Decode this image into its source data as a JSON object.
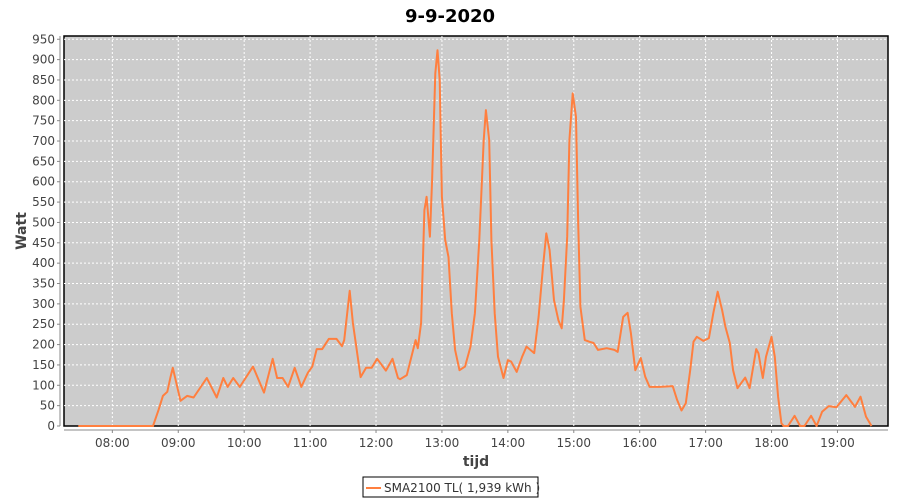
{
  "chart_data": {
    "type": "line",
    "title": "9-9-2020",
    "xlabel": "tijd",
    "ylabel": "Watt",
    "xlim": [
      "07:16",
      "19:46"
    ],
    "ylim": [
      0,
      958
    ],
    "x_ticks": [
      "08:00",
      "09:00",
      "10:00",
      "11:00",
      "12:00",
      "13:00",
      "14:00",
      "15:00",
      "16:00",
      "17:00",
      "18:00",
      "19:00"
    ],
    "y_ticks": [
      0,
      50,
      100,
      150,
      200,
      250,
      300,
      350,
      400,
      450,
      500,
      550,
      600,
      650,
      700,
      750,
      800,
      850,
      900,
      950
    ],
    "grid": true,
    "background": "#cccccc",
    "legend_position": "bottom",
    "series": [
      {
        "name": "SMA2100 TL( 1,939 kWh )",
        "color": "#ff7f3f",
        "points": [
          [
            "07:29",
            0
          ],
          [
            "08:37",
            0
          ],
          [
            "08:42",
            39
          ],
          [
            "08:46",
            74
          ],
          [
            "08:50",
            84
          ],
          [
            "08:53",
            121
          ],
          [
            "08:55",
            143
          ],
          [
            "09:02",
            62
          ],
          [
            "09:08",
            74
          ],
          [
            "09:14",
            70
          ],
          [
            "09:26",
            118
          ],
          [
            "09:35",
            70
          ],
          [
            "09:41",
            118
          ],
          [
            "09:45",
            96
          ],
          [
            "09:50",
            118
          ],
          [
            "09:56",
            96
          ],
          [
            "10:08",
            146
          ],
          [
            "10:18",
            82
          ],
          [
            "10:26",
            165
          ],
          [
            "10:30",
            118
          ],
          [
            "10:35",
            118
          ],
          [
            "10:40",
            96
          ],
          [
            "10:46",
            143
          ],
          [
            "10:52",
            96
          ],
          [
            "10:58",
            131
          ],
          [
            "11:02",
            146
          ],
          [
            "11:06",
            189
          ],
          [
            "11:11",
            189
          ],
          [
            "11:17",
            214
          ],
          [
            "11:24",
            214
          ],
          [
            "11:29",
            196
          ],
          [
            "11:31",
            211
          ],
          [
            "11:36",
            332
          ],
          [
            "11:39",
            253
          ],
          [
            "11:46",
            120
          ],
          [
            "11:51",
            143
          ],
          [
            "11:56",
            143
          ],
          [
            "12:01",
            165
          ],
          [
            "12:09",
            136
          ],
          [
            "12:15",
            165
          ],
          [
            "12:20",
            118
          ],
          [
            "12:22",
            115
          ],
          [
            "12:28",
            125
          ],
          [
            "12:36",
            211
          ],
          [
            "12:38",
            191
          ],
          [
            "12:41",
            253
          ],
          [
            "12:44",
            530
          ],
          [
            "12:46",
            563
          ],
          [
            "12:49",
            465
          ],
          [
            "12:51",
            604
          ],
          [
            "12:54",
            866
          ],
          [
            "12:56",
            923
          ],
          [
            "12:58",
            850
          ],
          [
            "13:00",
            563
          ],
          [
            "13:03",
            457
          ],
          [
            "13:06",
            415
          ],
          [
            "13:09",
            277
          ],
          [
            "13:12",
            187
          ],
          [
            "13:16",
            137
          ],
          [
            "13:21",
            146
          ],
          [
            "13:26",
            195
          ],
          [
            "13:30",
            277
          ],
          [
            "13:34",
            457
          ],
          [
            "13:38",
            702
          ],
          [
            "13:40",
            776
          ],
          [
            "13:43",
            702
          ],
          [
            "13:45",
            457
          ],
          [
            "13:48",
            277
          ],
          [
            "13:51",
            170
          ],
          [
            "13:56",
            118
          ],
          [
            "14:00",
            162
          ],
          [
            "14:03",
            158
          ],
          [
            "14:08",
            133
          ],
          [
            "14:13",
            170
          ],
          [
            "14:17",
            195
          ],
          [
            "14:24",
            179
          ],
          [
            "14:28",
            268
          ],
          [
            "14:32",
            391
          ],
          [
            "14:35",
            473
          ],
          [
            "14:38",
            432
          ],
          [
            "14:42",
            309
          ],
          [
            "14:46",
            260
          ],
          [
            "14:49",
            240
          ],
          [
            "14:51",
            309
          ],
          [
            "14:54",
            465
          ],
          [
            "14:56",
            702
          ],
          [
            "14:59",
            817
          ],
          [
            "15:02",
            759
          ],
          [
            "15:04",
            498
          ],
          [
            "15:06",
            293
          ],
          [
            "15:10",
            211
          ],
          [
            "15:14",
            207
          ],
          [
            "15:18",
            204
          ],
          [
            "15:22",
            187
          ],
          [
            "15:30",
            191
          ],
          [
            "15:37",
            187
          ],
          [
            "15:40",
            182
          ],
          [
            "15:45",
            268
          ],
          [
            "15:49",
            278
          ],
          [
            "15:52",
            228
          ],
          [
            "15:56",
            137
          ],
          [
            "16:01",
            167
          ],
          [
            "16:05",
            121
          ],
          [
            "16:09",
            96
          ],
          [
            "16:18",
            96
          ],
          [
            "16:30",
            98
          ],
          [
            "16:34",
            64
          ],
          [
            "16:38",
            38
          ],
          [
            "16:42",
            56
          ],
          [
            "16:46",
            137
          ],
          [
            "16:49",
            207
          ],
          [
            "16:52",
            219
          ],
          [
            "16:58",
            209
          ],
          [
            "17:03",
            216
          ],
          [
            "17:07",
            277
          ],
          [
            "17:11",
            330
          ],
          [
            "17:15",
            285
          ],
          [
            "17:18",
            244
          ],
          [
            "17:22",
            204
          ],
          [
            "17:25",
            137
          ],
          [
            "17:29",
            93
          ],
          [
            "17:36",
            119
          ],
          [
            "17:40",
            93
          ],
          [
            "17:46",
            189
          ],
          [
            "17:48",
            179
          ],
          [
            "17:52",
            118
          ],
          [
            "17:55",
            170
          ],
          [
            "18:00",
            219
          ],
          [
            "18:03",
            170
          ],
          [
            "18:06",
            72
          ],
          [
            "18:09",
            7
          ],
          [
            "18:11",
            0
          ],
          [
            "18:15",
            0
          ],
          [
            "18:21",
            25
          ],
          [
            "18:26",
            0
          ],
          [
            "18:30",
            0
          ],
          [
            "18:36",
            25
          ],
          [
            "18:41",
            0
          ],
          [
            "18:46",
            35
          ],
          [
            "18:52",
            49
          ],
          [
            "18:59",
            46
          ],
          [
            "19:08",
            76
          ],
          [
            "19:16",
            47
          ],
          [
            "19:21",
            72
          ],
          [
            "19:26",
            23
          ],
          [
            "19:31",
            0
          ]
        ]
      }
    ]
  }
}
